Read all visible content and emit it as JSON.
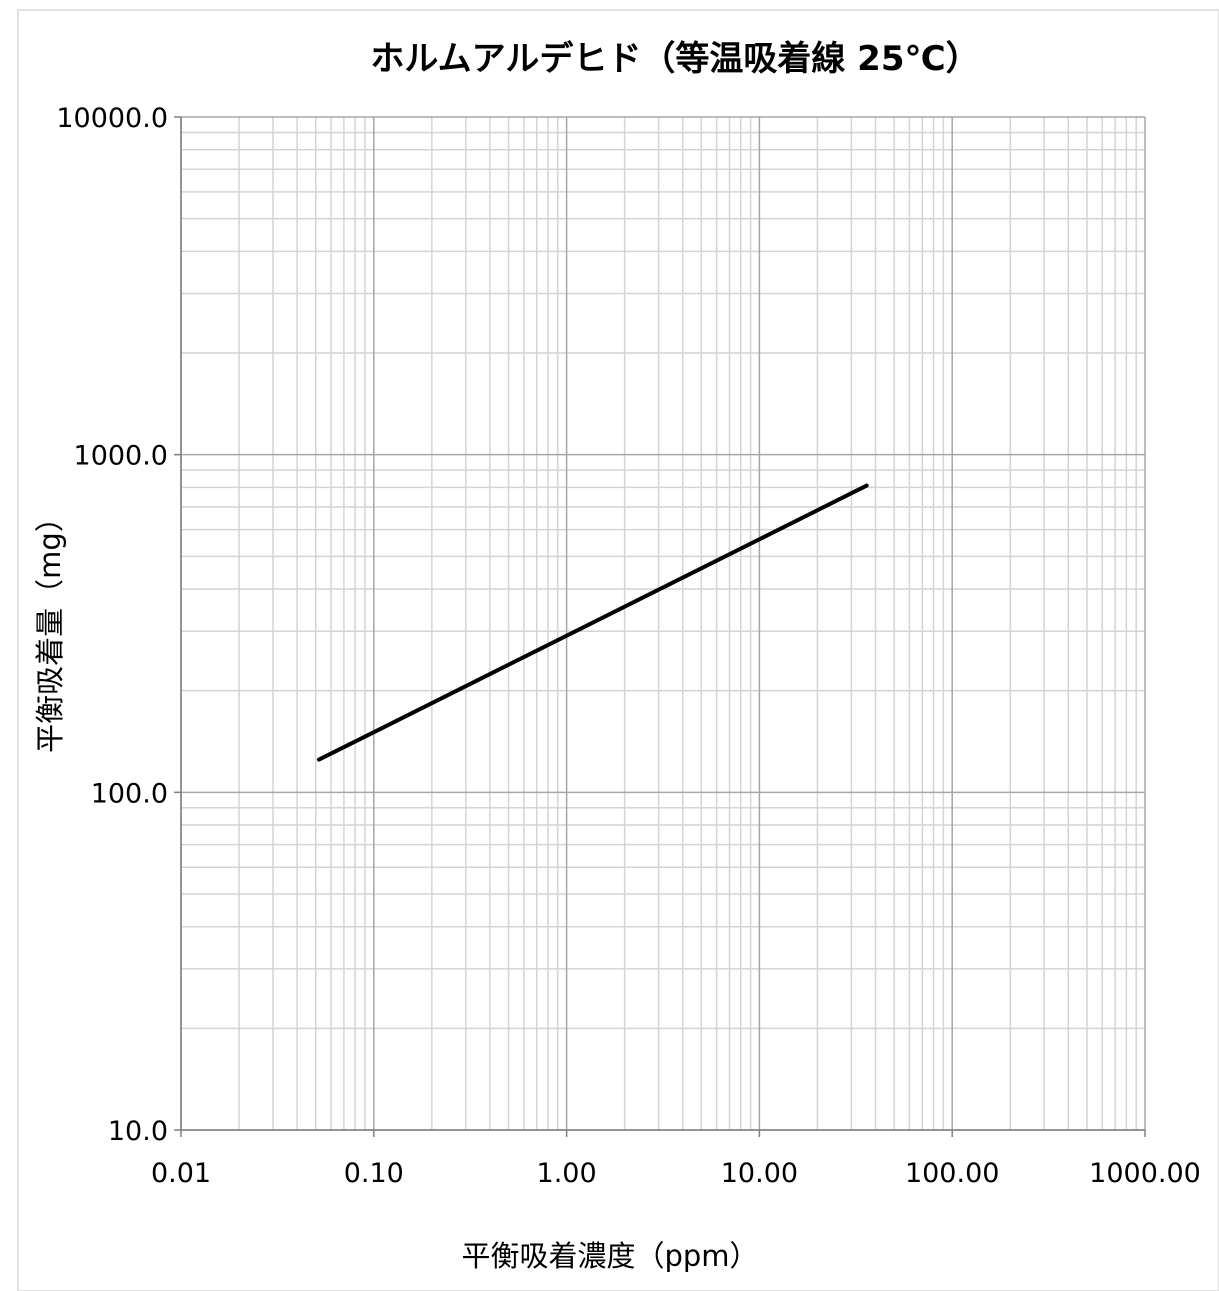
{
  "chart_data": {
    "type": "line",
    "title": "ホルムアルデヒド（等温吸着線 25℃）",
    "xlabel": "平衡吸着濃度（ppm）",
    "ylabel": "平衡吸着量（mg）",
    "x_scale": "log",
    "y_scale": "log",
    "xlim": [
      0.01,
      1000
    ],
    "ylim": [
      10,
      10000
    ],
    "x_ticks": [
      "0.01",
      "0.10",
      "1.00",
      "10.00",
      "100.00",
      "1000.00"
    ],
    "y_ticks": [
      "10.0",
      "100.0",
      "1000.0",
      "10000.0"
    ],
    "grid": true,
    "legend": "none",
    "series": [
      {
        "x": [
          0.052,
          36
        ],
        "y": [
          125,
          810
        ],
        "color": "#000000"
      }
    ]
  }
}
